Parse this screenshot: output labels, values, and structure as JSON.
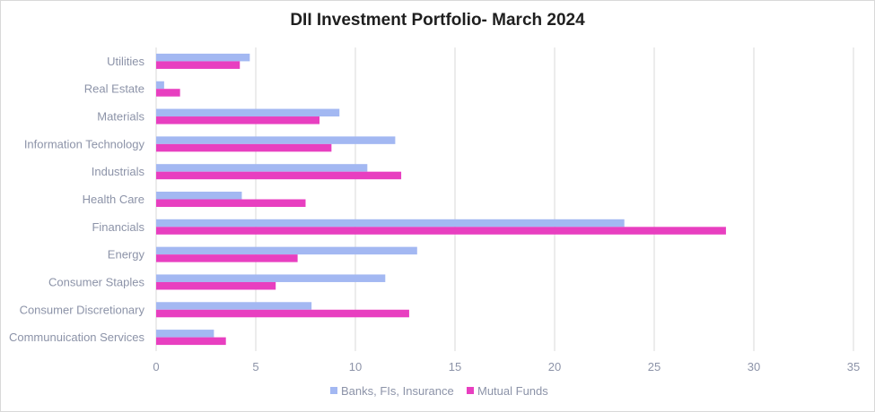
{
  "chart_data": {
    "type": "bar",
    "orientation": "horizontal",
    "title": "DII Investment Portfolio- March 2024",
    "categories": [
      "Utilities",
      "Real Estate",
      "Materials",
      "Information Technology",
      "Industrials",
      "Health Care",
      "Financials",
      "Energy",
      "Consumer Staples",
      "Consumer Discretionary",
      "Communuication Services"
    ],
    "series": [
      {
        "name": "Banks, FIs, Insurance",
        "color": "#a3b8f2",
        "values": [
          4.7,
          0.4,
          9.2,
          12.0,
          10.6,
          4.3,
          23.5,
          13.1,
          11.5,
          7.8,
          2.9
        ]
      },
      {
        "name": "Mutual Funds",
        "color": "#e83fc0",
        "values": [
          4.2,
          1.2,
          8.2,
          8.8,
          12.3,
          7.5,
          28.6,
          7.1,
          6.0,
          12.7,
          3.5
        ]
      }
    ],
    "xlim": [
      0,
      35
    ],
    "xticks": [
      0,
      5,
      10,
      15,
      20,
      25,
      30,
      35
    ],
    "grid": true,
    "gridline_color": "#d9d9d9",
    "legend_position": "bottom"
  }
}
